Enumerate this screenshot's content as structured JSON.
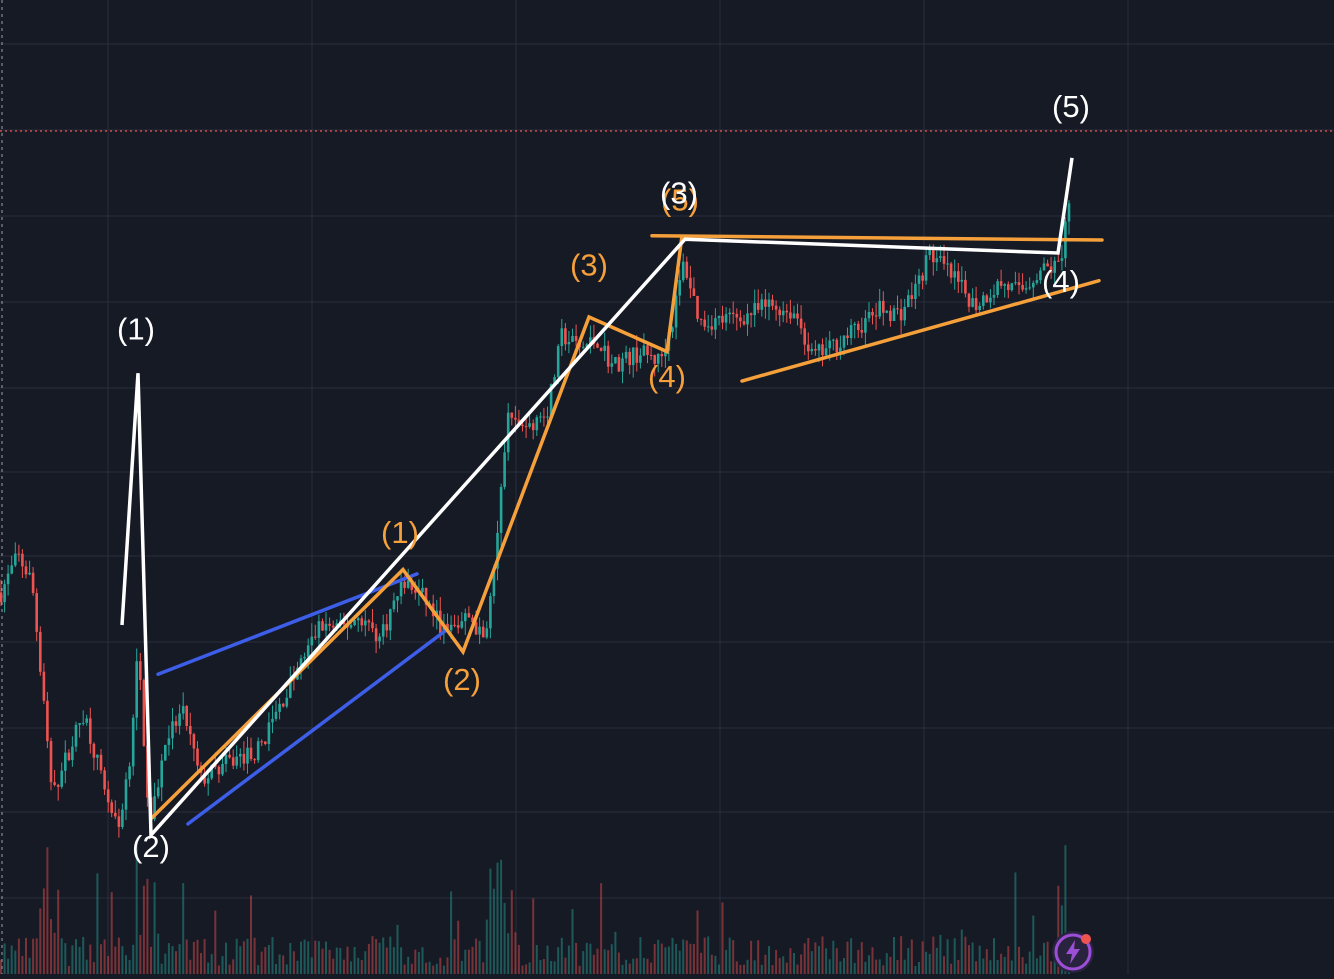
{
  "chart_data": {
    "type": "candlestick",
    "title": "",
    "xlabel": "",
    "ylabel": "",
    "price_range": [
      0,
      100
    ],
    "gridlines": true,
    "current_price_line": 94.1,
    "colors": {
      "background": "#161a25",
      "grid": "#2b2f3b",
      "up": "#26a69a",
      "down": "#ef5350",
      "primary_wave": "#ffffff",
      "sub_wave": "#f5a03a",
      "channel": "#3d5ee8",
      "price_line": "#ef5350"
    },
    "primary_wave": {
      "points": [
        [
          122,
          37.0
        ],
        [
          138,
          66.1
        ],
        [
          151,
          12.7
        ],
        [
          685,
          81.6
        ],
        [
          1058,
          80.0
        ],
        [
          1072,
          91.0
        ]
      ],
      "labels": [
        {
          "text": "(1)",
          "x": 136,
          "y": 70.0
        },
        {
          "text": "(2)",
          "x": 151,
          "y": 10.2
        },
        {
          "text": "(3)",
          "x": 679,
          "y": 85.7
        },
        {
          "text": "(4)",
          "x": 1061,
          "y": 75.5
        },
        {
          "text": "(5)",
          "x": 1071,
          "y": 95.7
        }
      ]
    },
    "sub_wave": {
      "points": [
        [
          151,
          14.6
        ],
        [
          403,
          43.4
        ],
        [
          463,
          33.9
        ],
        [
          589,
          72.6
        ],
        [
          667,
          68.6
        ],
        [
          682,
          82.0
        ]
      ],
      "labels": [
        {
          "text": "(1)",
          "x": 400,
          "y": 46.5
        },
        {
          "text": "(2)",
          "x": 462,
          "y": 29.5
        },
        {
          "text": "(3)",
          "x": 589,
          "y": 77.4
        },
        {
          "text": "(4)",
          "x": 667,
          "y": 64.5
        },
        {
          "text": "(5)",
          "x": 680,
          "y": 84.9
        }
      ]
    },
    "channel_lines": [
      {
        "from": [
          158,
          31.3
        ],
        "to": [
          417,
          42.9
        ]
      },
      {
        "from": [
          188,
          14.0
        ],
        "to": [
          445,
          36.3
        ]
      }
    ],
    "triangle_lines": [
      {
        "from": [
          652,
          82.0
        ],
        "to": [
          1102,
          81.5
        ]
      },
      {
        "from": [
          742,
          65.2
        ],
        "to": [
          1099,
          76.8
        ]
      }
    ],
    "candles": {
      "count": 300,
      "x_start": 1,
      "x_end": 1069,
      "seed": 7,
      "anchors": [
        [
          0,
          40.5
        ],
        [
          18,
          45.0
        ],
        [
          32,
          42.0
        ],
        [
          44,
          28.0
        ],
        [
          52,
          17.0
        ],
        [
          64,
          21.0
        ],
        [
          84,
          27.0
        ],
        [
          100,
          20.0
        ],
        [
          118,
          13.0
        ],
        [
          130,
          22.0
        ],
        [
          138,
          34.0
        ],
        [
          150,
          13.5
        ],
        [
          166,
          24.0
        ],
        [
          184,
          27.0
        ],
        [
          200,
          19.0
        ],
        [
          226,
          21.0
        ],
        [
          258,
          22.5
        ],
        [
          290,
          30.0
        ],
        [
          320,
          37.0
        ],
        [
          340,
          36.5
        ],
        [
          360,
          38.0
        ],
        [
          380,
          35.5
        ],
        [
          403,
          42.0
        ],
        [
          425,
          40.0
        ],
        [
          446,
          36.0
        ],
        [
          470,
          38.0
        ],
        [
          484,
          35.0
        ],
        [
          498,
          48.0
        ],
        [
          508,
          61.0
        ],
        [
          528,
          60.0
        ],
        [
          548,
          62.0
        ],
        [
          562,
          70.5
        ],
        [
          580,
          69.0
        ],
        [
          598,
          70.0
        ],
        [
          612,
          67.0
        ],
        [
          640,
          68.5
        ],
        [
          660,
          67.5
        ],
        [
          672,
          72.0
        ],
        [
          684,
          79.0
        ],
        [
          700,
          72.0
        ],
        [
          740,
          72.5
        ],
        [
          770,
          74.0
        ],
        [
          796,
          73.0
        ],
        [
          812,
          68.0
        ],
        [
          830,
          69.0
        ],
        [
          860,
          71.5
        ],
        [
          880,
          73.5
        ],
        [
          900,
          73.0
        ],
        [
          916,
          76.0
        ],
        [
          930,
          80.0
        ],
        [
          950,
          77.5
        ],
        [
          975,
          74.0
        ],
        [
          1000,
          76.5
        ],
        [
          1020,
          75.5
        ],
        [
          1040,
          78.0
        ],
        [
          1058,
          78.5
        ],
        [
          1064,
          81.0
        ],
        [
          1072,
          90.0
        ]
      ]
    }
  }
}
